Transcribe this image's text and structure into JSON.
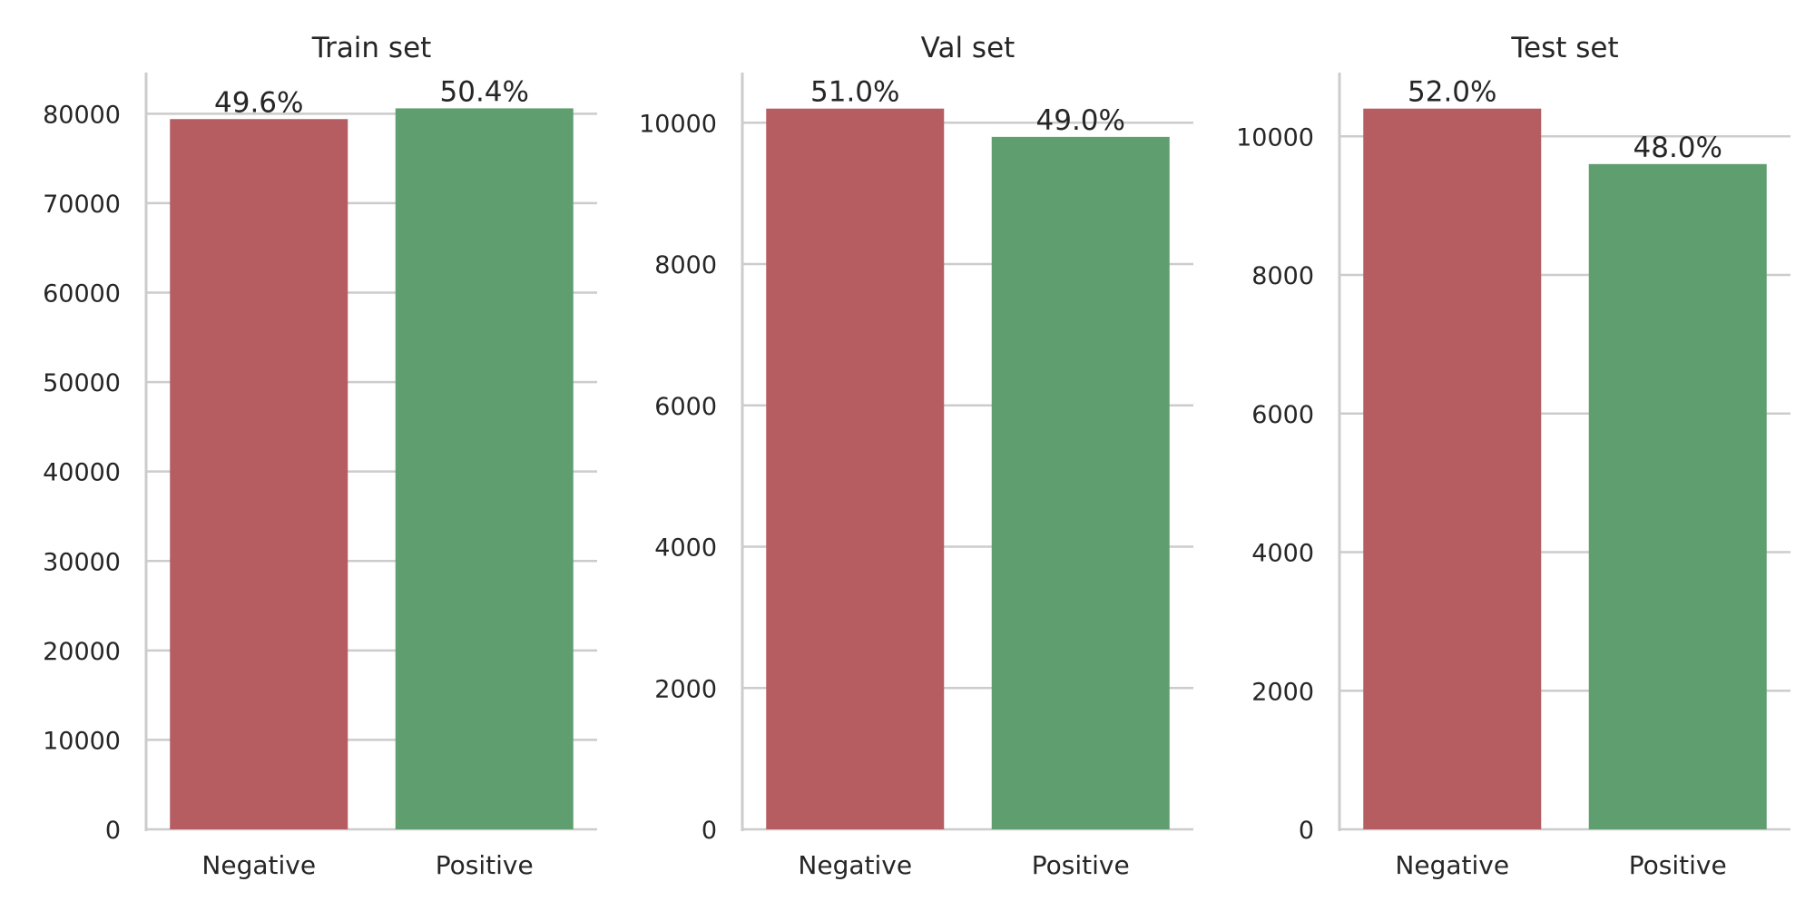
{
  "colors": {
    "negative": "#b55d60",
    "positive": "#5f9e6e",
    "grid": "#cccccc",
    "text": "#262626"
  },
  "chart_data": [
    {
      "type": "bar",
      "title": "Train set",
      "categories": [
        "Negative",
        "Positive"
      ],
      "values": [
        79400,
        80600
      ],
      "data_labels": [
        "49.6%",
        "50.4%"
      ],
      "yticks": [
        0,
        10000,
        20000,
        30000,
        40000,
        50000,
        60000,
        70000,
        80000
      ],
      "ylim": [
        0,
        84600
      ],
      "grid": "horizontal",
      "xlabel": "",
      "ylabel": ""
    },
    {
      "type": "bar",
      "title": "Val set",
      "categories": [
        "Negative",
        "Positive"
      ],
      "values": [
        10200,
        9800
      ],
      "data_labels": [
        "51.0%",
        "49.0%"
      ],
      "yticks": [
        0,
        2000,
        4000,
        6000,
        8000,
        10000
      ],
      "ylim": [
        0,
        10710
      ],
      "grid": "horizontal",
      "xlabel": "",
      "ylabel": ""
    },
    {
      "type": "bar",
      "title": "Test set",
      "categories": [
        "Negative",
        "Positive"
      ],
      "values": [
        10400,
        9600
      ],
      "data_labels": [
        "52.0%",
        "48.0%"
      ],
      "yticks": [
        0,
        2000,
        4000,
        6000,
        8000,
        10000
      ],
      "ylim": [
        0,
        10920
      ],
      "grid": "horizontal",
      "xlabel": "",
      "ylabel": ""
    }
  ]
}
